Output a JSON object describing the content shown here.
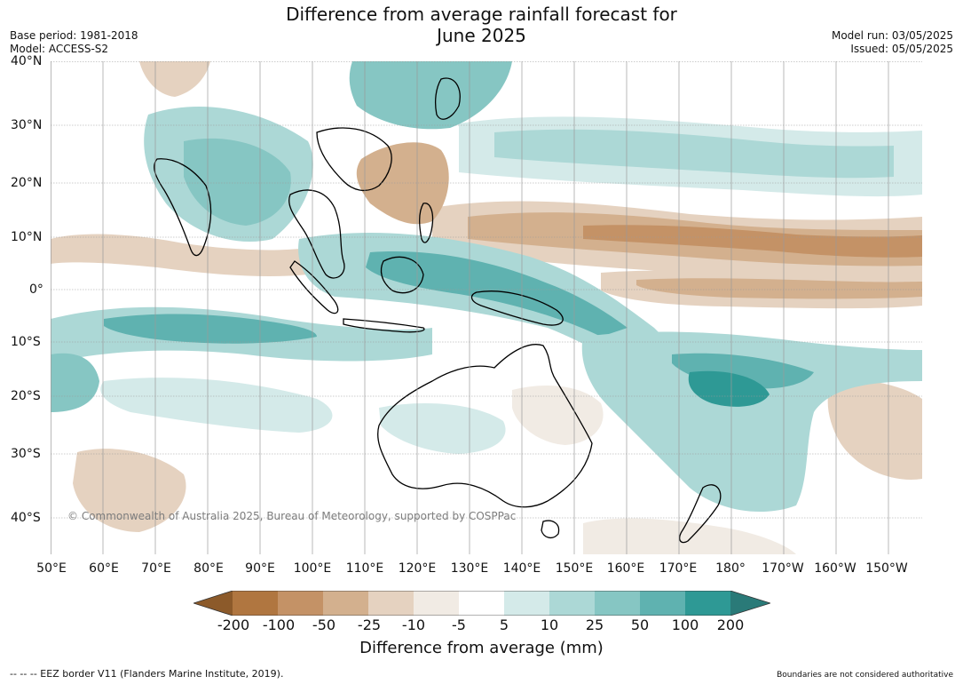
{
  "title": {
    "line1": "Difference from average rainfall forecast for",
    "line2": "June 2025"
  },
  "meta": {
    "base_period": "Base period: 1981-2018",
    "model": "Model: ACCESS-S2",
    "model_run": "Model run: 03/05/2025",
    "issued": "Issued: 05/05/2025"
  },
  "map": {
    "lat_labels": [
      "40°N",
      "30°N",
      "20°N",
      "10°N",
      "0°",
      "10°S",
      "20°S",
      "30°S",
      "40°S"
    ],
    "lon_labels": [
      "50°E",
      "60°E",
      "70°E",
      "80°E",
      "90°E",
      "100°E",
      "110°E",
      "120°E",
      "130°E",
      "140°E",
      "150°E",
      "160°E",
      "170°E",
      "180°",
      "170°W",
      "160°W",
      "150°W"
    ],
    "copyright": "© Commonwealth of Australia 2025, Bureau of Meteorology, supported by COSPPac",
    "colors": {
      "dry_extreme": "#8c5a2a",
      "dry_200": "#b07640",
      "dry_100": "#c49266",
      "dry_50": "#d3b08e",
      "dry_25": "#e5d2c0",
      "dry_10": "#f1ebe4",
      "neutral": "#ffffff",
      "wet_5": "#d4eae9",
      "wet_10": "#acd8d6",
      "wet_25": "#86c6c3",
      "wet_50": "#5fb2b0",
      "wet_100": "#2e9995",
      "wet_extreme": "#2a7a78"
    }
  },
  "colorbar": {
    "labels": [
      "-200",
      "-100",
      "-50",
      "-25",
      "-10",
      "-5",
      "5",
      "10",
      "25",
      "50",
      "100",
      "200"
    ],
    "title": "Difference from average (mm)"
  },
  "footer": {
    "eez": "--  --  -- EEZ border V11 (Flanders Marine Institute, 2019).",
    "disclaimer": "Boundaries are not considered authoritative"
  }
}
